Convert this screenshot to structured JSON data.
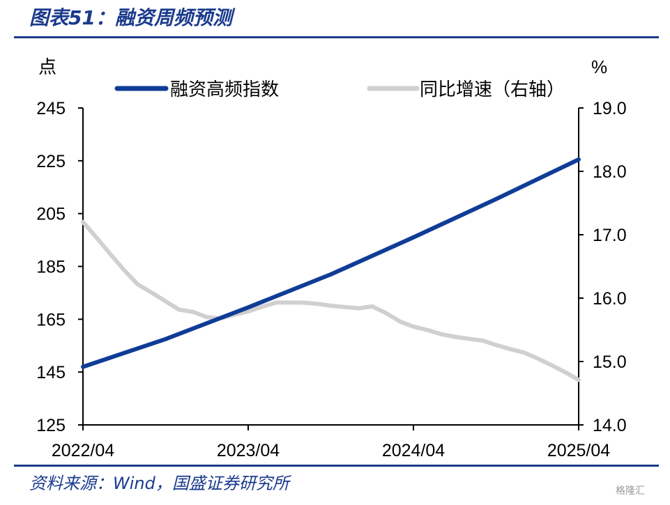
{
  "header": {
    "title": "图表51：融资周频预测"
  },
  "footer": {
    "source": "资料来源：Wind，国盛证券研究所",
    "watermark": "格隆汇"
  },
  "chart_data": {
    "type": "line",
    "left_unit": "点",
    "right_unit": "%",
    "x_tick_labels": [
      "2022/04",
      "2023/04",
      "2024/04",
      "2025/04"
    ],
    "x_range": [
      2022.25,
      2025.25
    ],
    "y_left": {
      "ticks": [
        245,
        225,
        205,
        185,
        165,
        145,
        125
      ],
      "range": [
        125,
        245
      ]
    },
    "y_right": {
      "ticks": [
        "19.0",
        "18.0",
        "17.0",
        "16.0",
        "15.0",
        "14.0"
      ],
      "range": [
        14.0,
        19.0
      ]
    },
    "legend": {
      "placement": "top"
    },
    "series": [
      {
        "name": "融资高频指数",
        "axis": "left",
        "color": "#0f3c96",
        "x": [
          2022.25,
          2022.75,
          2023.25,
          2023.75,
          2024.25,
          2024.75,
          2025.25
        ],
        "y": [
          147,
          157.5,
          169.5,
          182,
          196,
          210.5,
          225.5
        ]
      },
      {
        "name": "同比增速（右轴）",
        "axis": "right",
        "color": "#d0d0d0",
        "x": [
          2022.25,
          2022.33,
          2022.42,
          2022.5,
          2022.58,
          2022.67,
          2022.75,
          2022.83,
          2022.92,
          2023.0,
          2023.08,
          2023.17,
          2023.25,
          2023.33,
          2023.42,
          2023.5,
          2023.58,
          2023.67,
          2023.75,
          2023.83,
          2023.92,
          2024.0,
          2024.08,
          2024.17,
          2024.25,
          2024.33,
          2024.42,
          2024.5,
          2024.58,
          2024.67,
          2024.75,
          2024.83,
          2024.92,
          2025.0,
          2025.08,
          2025.17,
          2025.25
        ],
        "y": [
          17.2,
          16.96,
          16.68,
          16.44,
          16.22,
          16.08,
          15.95,
          15.82,
          15.78,
          15.7,
          15.68,
          15.74,
          15.79,
          15.86,
          15.93,
          15.93,
          15.93,
          15.91,
          15.88,
          15.86,
          15.84,
          15.87,
          15.77,
          15.63,
          15.55,
          15.5,
          15.43,
          15.39,
          15.36,
          15.33,
          15.26,
          15.2,
          15.14,
          15.05,
          14.95,
          14.83,
          14.71
        ]
      }
    ]
  }
}
